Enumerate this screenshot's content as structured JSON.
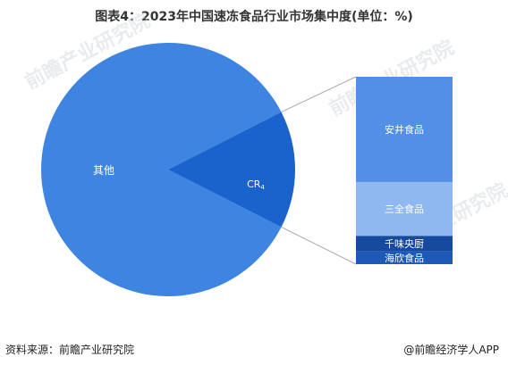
{
  "title": "图表4：2023年中国速冻食品行业市场集中度(单位：%)",
  "footer": {
    "source": "资料来源：前瞻产业研究院",
    "brand": "@前瞻经济学人APP"
  },
  "watermark": "前瞻产业研究院",
  "colors": {
    "pie_main": "#3d85e0",
    "pie_cr4": "#1a63cc",
    "bar_anjing": "#5190e6",
    "bar_sanquan": "#8fb8f0",
    "bar_qianwei": "#154a9e",
    "bar_haixin": "#1d5ab8",
    "connector": "#a8a8a8"
  },
  "chart_data": {
    "type": "pie",
    "subtype": "pie-of-bar",
    "slices": [
      {
        "label": "其他",
        "value": 85
      },
      {
        "label": "CR",
        "subscript": "4",
        "value": 15
      }
    ],
    "breakdown_of": "CR4",
    "breakdown": [
      {
        "label": "安井食品",
        "value": 8.2
      },
      {
        "label": "三全食品",
        "value": 4.2
      },
      {
        "label": "千味央厨",
        "value": 1.2
      },
      {
        "label": "海欣食品",
        "value": 1.0
      }
    ]
  }
}
